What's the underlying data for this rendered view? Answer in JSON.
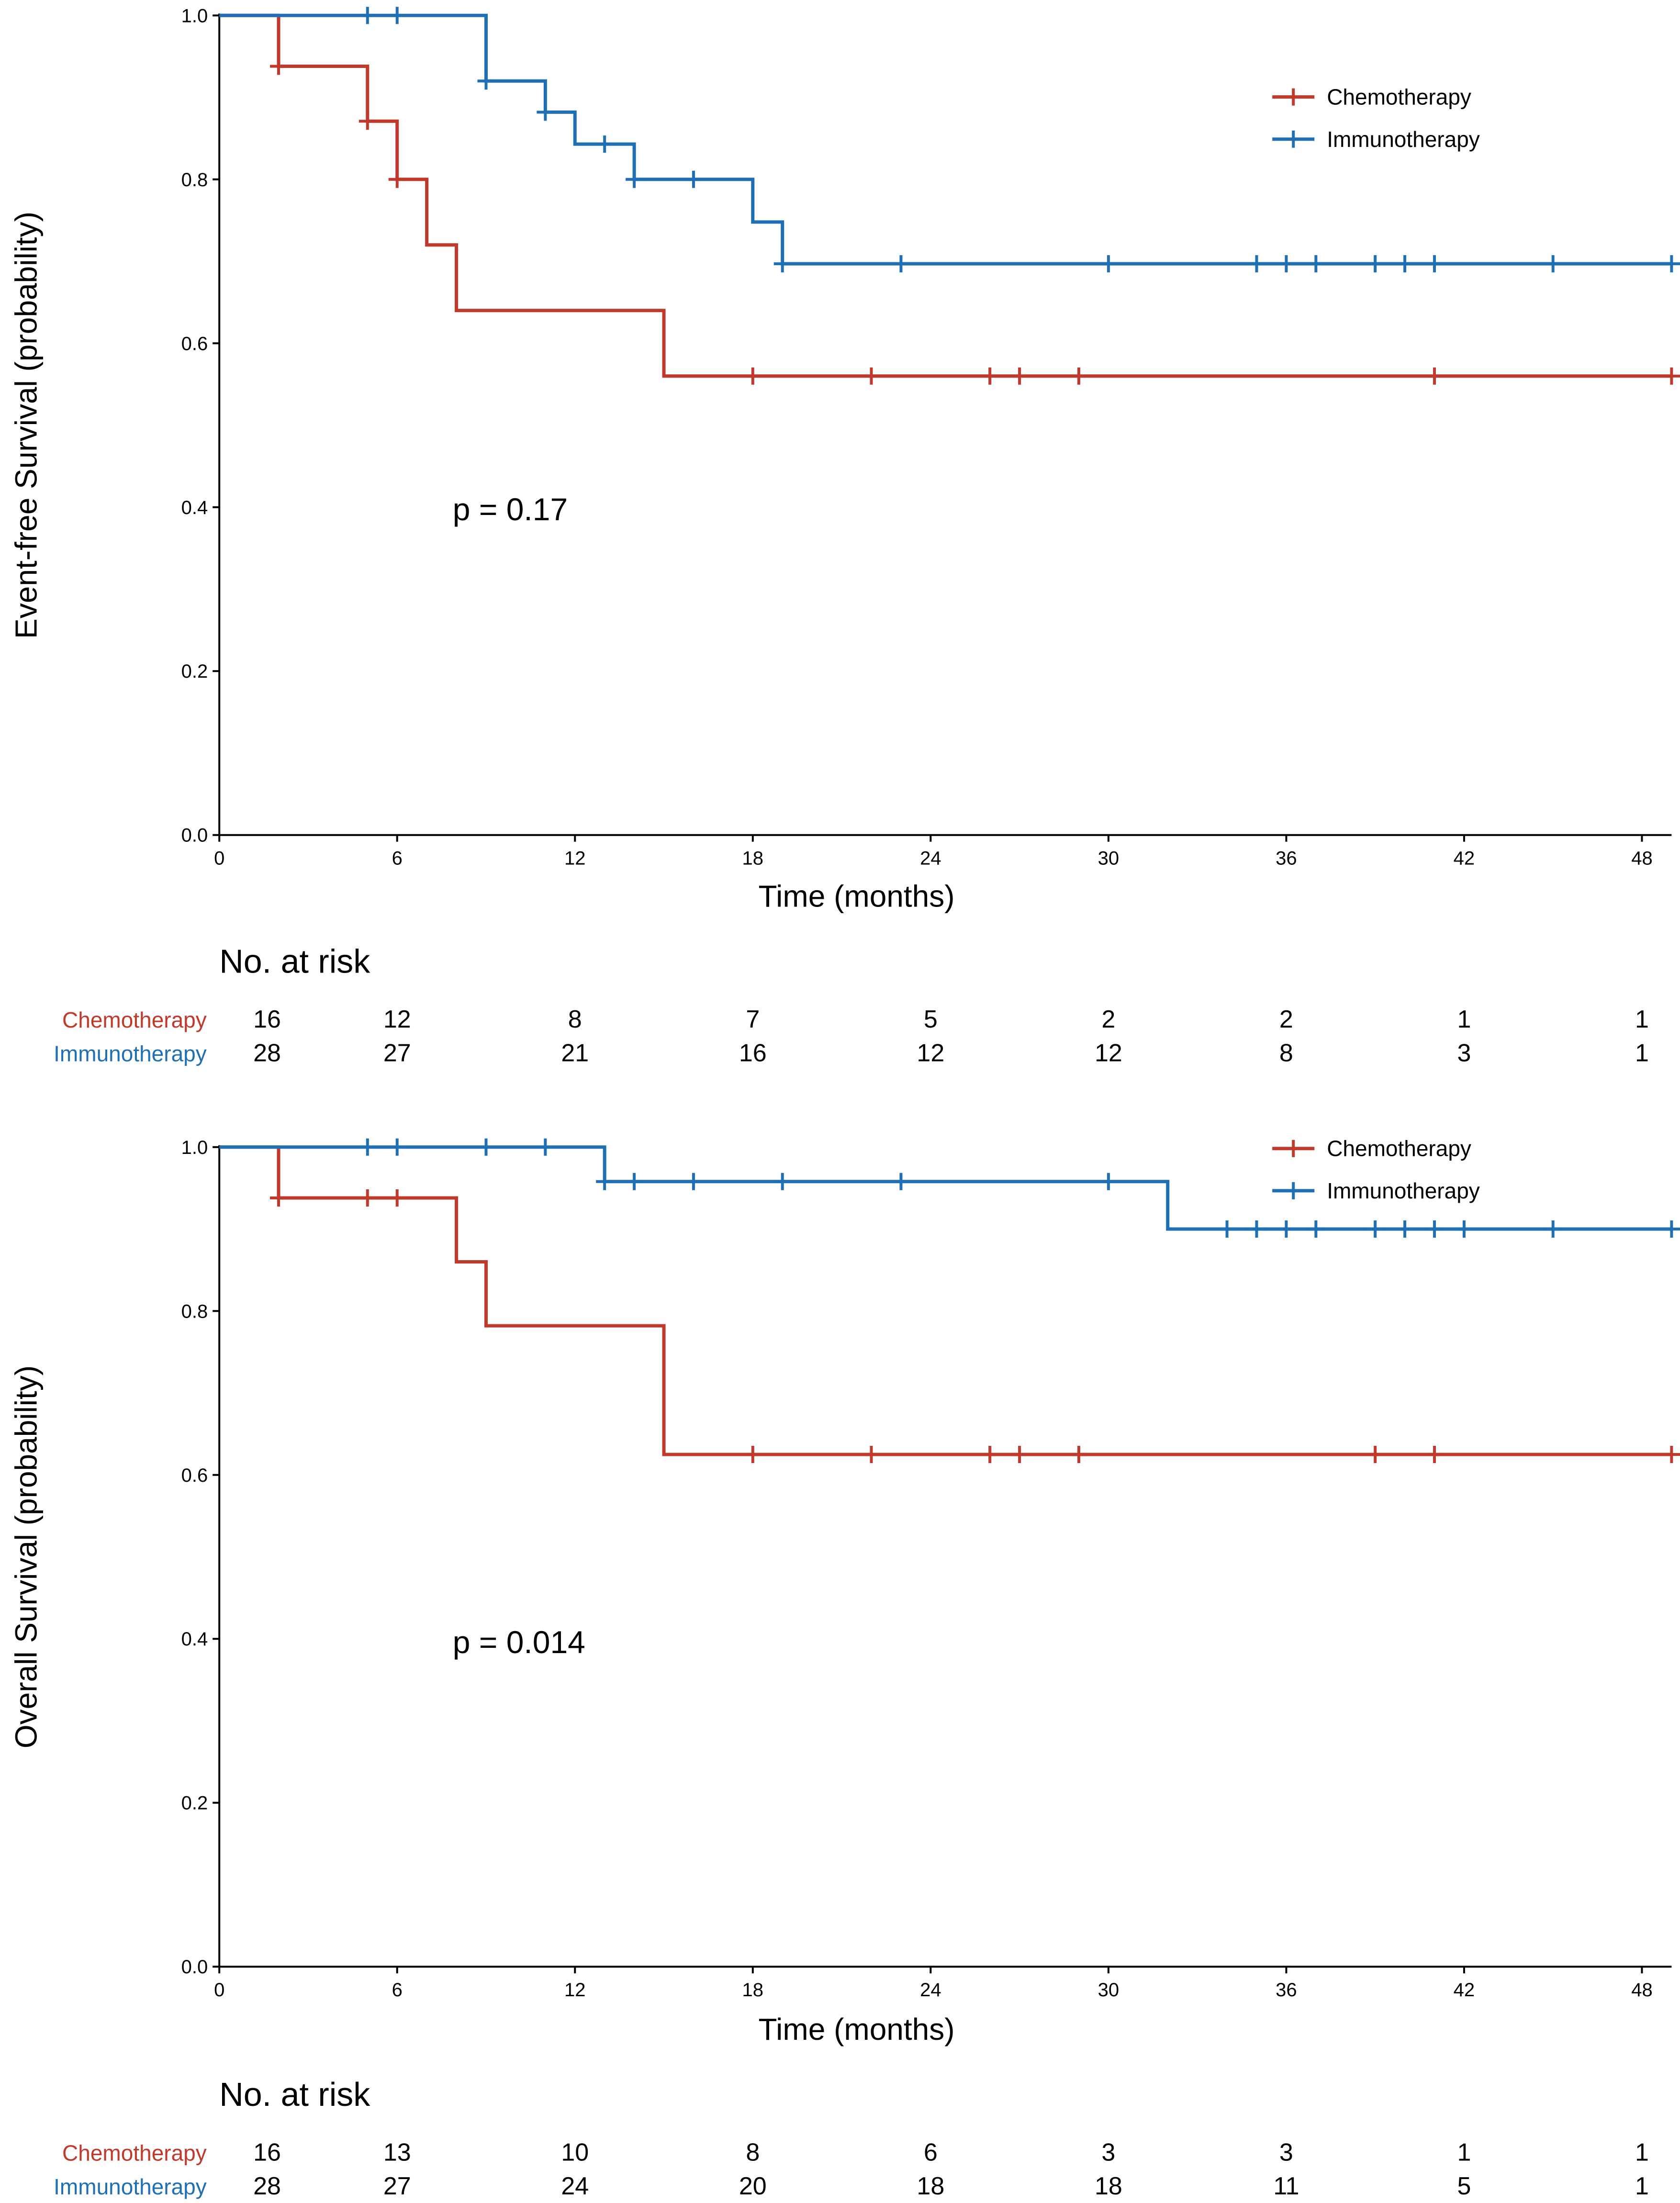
{
  "colors": {
    "chemotherapy": "#C0392B",
    "immunotherapy": "#1F6FB5",
    "axis": "#000000"
  },
  "chart_data": [
    {
      "type": "line",
      "subtype": "kaplan-meier-step",
      "ylabel": "Event-free Survival (probability)",
      "xlabel": "Time (months)",
      "xlim": [
        0,
        49
      ],
      "ylim": [
        0,
        1
      ],
      "xticks": [
        0,
        6,
        12,
        18,
        24,
        30,
        36,
        42,
        48
      ],
      "xtick_labels": [
        "0",
        "6",
        "12",
        "18",
        "24",
        "30",
        "36",
        "42",
        "48"
      ],
      "yticks": [
        0,
        0.2,
        0.4,
        0.6,
        0.8,
        1.0
      ],
      "ytick_labels": [
        "0.0",
        "0.2",
        "0.4",
        "0.6",
        "0.8",
        "1.0"
      ],
      "annotation": "p = 0.17",
      "legend": {
        "position": "top-right",
        "entries": [
          "Chemotherapy",
          "Immunotherapy"
        ]
      },
      "series": [
        {
          "name": "Chemotherapy",
          "color_key": "chemotherapy",
          "steps": [
            [
              0,
              1.0
            ],
            [
              2,
              0.938
            ],
            [
              5,
              0.871
            ],
            [
              6,
              0.8
            ],
            [
              7,
              0.72
            ],
            [
              8,
              0.64
            ],
            [
              15,
              0.56
            ],
            [
              49,
              0.56
            ]
          ],
          "censors": [
            [
              2,
              0.938
            ],
            [
              5,
              0.871
            ],
            [
              6,
              0.8
            ],
            [
              18,
              0.56
            ],
            [
              22,
              0.56
            ],
            [
              26,
              0.56
            ],
            [
              27,
              0.56
            ],
            [
              29,
              0.56
            ],
            [
              41,
              0.56
            ],
            [
              49,
              0.56
            ]
          ]
        },
        {
          "name": "Immunotherapy",
          "color_key": "immunotherapy",
          "steps": [
            [
              0,
              1.0
            ],
            [
              9,
              0.92
            ],
            [
              11,
              0.882
            ],
            [
              12,
              0.843
            ],
            [
              14,
              0.8
            ],
            [
              18,
              0.748
            ],
            [
              19,
              0.697
            ],
            [
              49,
              0.697
            ]
          ],
          "censors": [
            [
              5,
              1.0
            ],
            [
              6,
              1.0
            ],
            [
              9,
              0.92
            ],
            [
              11,
              0.882
            ],
            [
              13,
              0.843
            ],
            [
              14,
              0.8
            ],
            [
              16,
              0.8
            ],
            [
              19,
              0.697
            ],
            [
              23,
              0.697
            ],
            [
              30,
              0.697
            ],
            [
              35,
              0.697
            ],
            [
              36,
              0.697
            ],
            [
              37,
              0.697
            ],
            [
              39,
              0.697
            ],
            [
              40,
              0.697
            ],
            [
              41,
              0.697
            ],
            [
              45,
              0.697
            ],
            [
              49,
              0.697
            ]
          ]
        }
      ],
      "risk_table": {
        "title": "No. at risk",
        "times": [
          0,
          6,
          12,
          18,
          24,
          30,
          36,
          42,
          48
        ],
        "rows": [
          {
            "label": "Chemotherapy",
            "color_key": "chemotherapy",
            "values": [
              "16",
              "12",
              "8",
              "7",
              "5",
              "2",
              "2",
              "1",
              "1"
            ]
          },
          {
            "label": "Immunotherapy",
            "color_key": "immunotherapy",
            "values": [
              "28",
              "27",
              "21",
              "16",
              "12",
              "12",
              "8",
              "3",
              "1"
            ]
          }
        ]
      }
    },
    {
      "type": "line",
      "subtype": "kaplan-meier-step",
      "ylabel": "Overall Survival (probability)",
      "xlabel": "Time (months)",
      "xlim": [
        0,
        49
      ],
      "ylim": [
        0,
        1
      ],
      "xticks": [
        0,
        6,
        12,
        18,
        24,
        30,
        36,
        42,
        48
      ],
      "xtick_labels": [
        "0",
        "6",
        "12",
        "18",
        "24",
        "30",
        "36",
        "42",
        "48"
      ],
      "yticks": [
        0,
        0.2,
        0.4,
        0.6,
        0.8,
        1.0
      ],
      "ytick_labels": [
        "0.0",
        "0.2",
        "0.4",
        "0.6",
        "0.8",
        "1.0"
      ],
      "annotation": "p = 0.014",
      "legend": {
        "position": "top-right",
        "entries": [
          "Chemotherapy",
          "Immunotherapy"
        ]
      },
      "series": [
        {
          "name": "Chemotherapy",
          "color_key": "chemotherapy",
          "steps": [
            [
              0,
              1.0
            ],
            [
              2,
              0.938
            ],
            [
              8,
              0.86
            ],
            [
              9,
              0.782
            ],
            [
              15,
              0.625
            ],
            [
              49,
              0.625
            ]
          ],
          "censors": [
            [
              2,
              0.938
            ],
            [
              5,
              0.938
            ],
            [
              6,
              0.938
            ],
            [
              18,
              0.625
            ],
            [
              22,
              0.625
            ],
            [
              26,
              0.625
            ],
            [
              27,
              0.625
            ],
            [
              29,
              0.625
            ],
            [
              39,
              0.625
            ],
            [
              41,
              0.625
            ],
            [
              49,
              0.625
            ]
          ]
        },
        {
          "name": "Immunotherapy",
          "color_key": "immunotherapy",
          "steps": [
            [
              0,
              1.0
            ],
            [
              13,
              0.958
            ],
            [
              32,
              0.9
            ],
            [
              49,
              0.9
            ]
          ],
          "censors": [
            [
              5,
              1.0
            ],
            [
              6,
              1.0
            ],
            [
              9,
              1.0
            ],
            [
              11,
              1.0
            ],
            [
              13,
              0.958
            ],
            [
              14,
              0.958
            ],
            [
              16,
              0.958
            ],
            [
              19,
              0.958
            ],
            [
              23,
              0.958
            ],
            [
              30,
              0.958
            ],
            [
              34,
              0.9
            ],
            [
              35,
              0.9
            ],
            [
              36,
              0.9
            ],
            [
              37,
              0.9
            ],
            [
              39,
              0.9
            ],
            [
              40,
              0.9
            ],
            [
              41,
              0.9
            ],
            [
              42,
              0.9
            ],
            [
              45,
              0.9
            ],
            [
              49,
              0.9
            ]
          ]
        }
      ],
      "risk_table": {
        "title": "No. at risk",
        "times": [
          0,
          6,
          12,
          18,
          24,
          30,
          36,
          42,
          48
        ],
        "rows": [
          {
            "label": "Chemotherapy",
            "color_key": "chemotherapy",
            "values": [
              "16",
              "13",
              "10",
              "8",
              "6",
              "3",
              "3",
              "1",
              "1"
            ]
          },
          {
            "label": "Immunotherapy",
            "color_key": "immunotherapy",
            "values": [
              "28",
              "27",
              "24",
              "20",
              "18",
              "18",
              "11",
              "5",
              "1"
            ]
          }
        ]
      }
    }
  ]
}
